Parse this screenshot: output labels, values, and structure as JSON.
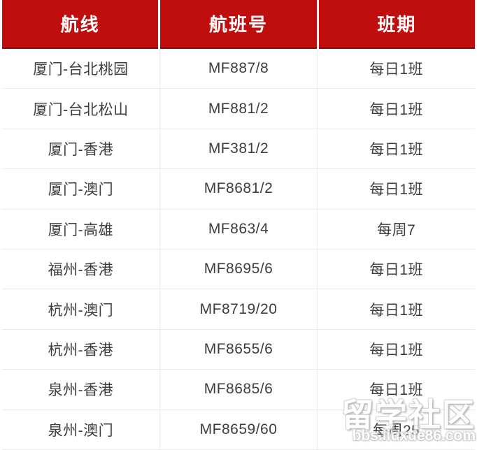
{
  "chart_data": {
    "type": "table",
    "columns": [
      "航线",
      "航班号",
      "班期"
    ],
    "rows": [
      [
        "厦门-台北桃园",
        "MF887/8",
        "每日1班"
      ],
      [
        "厦门-台北松山",
        "MF881/2",
        "每日1班"
      ],
      [
        "厦门-香港",
        "MF381/2",
        "每日1班"
      ],
      [
        "厦门-澳门",
        "MF8681/2",
        "每日1班"
      ],
      [
        "厦门-高雄",
        "MF863/4",
        "每周7"
      ],
      [
        "福州-香港",
        "MF8695/6",
        "每日1班"
      ],
      [
        "杭州-澳门",
        "MF8719/20",
        "每日1班"
      ],
      [
        "杭州-香港",
        "MF8655/6",
        "每日1班"
      ],
      [
        "泉州-香港",
        "MF8685/6",
        "每日1班"
      ],
      [
        "泉州-澳门",
        "MF8659/60",
        "每周25"
      ]
    ],
    "title": "",
    "layout_hints": {
      "header_style": "red banner, white bold text",
      "grid": "thin light-gray row and column dividers"
    }
  },
  "watermark": {
    "title": "留学社区",
    "url": "bbs.liuxue86.com"
  },
  "colors": {
    "header_bg": "#c00d0d",
    "header_border_bottom": "#9e0a0a",
    "header_text": "#ffffff",
    "body_text": "#3d3d3d",
    "row_divider": "#e9e9e9",
    "column_divider": "#ededed",
    "background": "#ffffff"
  }
}
